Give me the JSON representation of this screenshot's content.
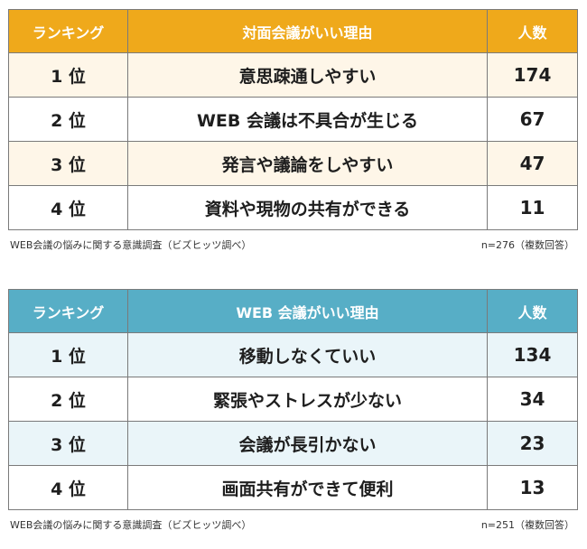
{
  "colors": {
    "table1_header": "#efa91b",
    "table1_alt_row": "#fef6e8",
    "table2_header": "#57aec6",
    "table2_alt_row": "#eaf5f9",
    "row_default": "#ffffff",
    "border": "#7a7a7a"
  },
  "tables": [
    {
      "header": {
        "rank": "ランキング",
        "reason": "対面会議がいい理由",
        "count": "人数"
      },
      "rows": [
        {
          "rank": "1 位",
          "reason": "意思疎通しやすい",
          "count": "174"
        },
        {
          "rank": "2 位",
          "reason": "WEB 会議は不具合が生じる",
          "count": "67"
        },
        {
          "rank": "3 位",
          "reason": "発言や議論をしやすい",
          "count": "47"
        },
        {
          "rank": "4 位",
          "reason": "資料や現物の共有ができる",
          "count": "11"
        }
      ],
      "source": "WEB会議の悩みに関する意識調査（ビズヒッツ調べ）",
      "note": "n=276（複数回答）"
    },
    {
      "header": {
        "rank": "ランキング",
        "reason": "WEB 会議がいい理由",
        "count": "人数"
      },
      "rows": [
        {
          "rank": "1 位",
          "reason": "移動しなくていい",
          "count": "134"
        },
        {
          "rank": "2 位",
          "reason": "緊張やストレスが少ない",
          "count": "34"
        },
        {
          "rank": "3 位",
          "reason": "会議が長引かない",
          "count": "23"
        },
        {
          "rank": "4 位",
          "reason": "画面共有ができて便利",
          "count": "13"
        }
      ],
      "source": "WEB会議の悩みに関する意識調査（ビズヒッツ調べ）",
      "note": "n=251（複数回答）"
    }
  ]
}
